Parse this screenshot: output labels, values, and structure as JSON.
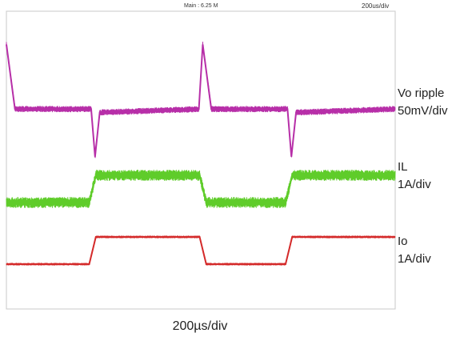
{
  "header": {
    "status": "Main : 6.25 M",
    "timebase": "200us/div"
  },
  "labels": {
    "vo_name": "Vo ripple",
    "vo_scale": "50mV/div",
    "il_name": "IL",
    "il_scale": "1A/div",
    "io_name": "Io",
    "io_scale": "1A/div",
    "x_caption": "200µs/div"
  },
  "chart_data": {
    "type": "line",
    "title": "",
    "x_unit": "us",
    "x_scale": "200us/div",
    "xlim": [
      0,
      1000
    ],
    "series": [
      {
        "name": "Vo ripple",
        "scale": "50mV/div",
        "color": "#b72fa8",
        "unit": "mV",
        "ylim": [
          -75,
          125
        ],
        "points": [
          [
            0,
            95
          ],
          [
            22,
            0
          ],
          [
            218,
            0
          ],
          [
            228,
            -70
          ],
          [
            240,
            -5
          ],
          [
            495,
            0
          ],
          [
            505,
            95
          ],
          [
            527,
            0
          ],
          [
            723,
            0
          ],
          [
            733,
            -70
          ],
          [
            745,
            -5
          ],
          [
            1000,
            0
          ]
        ]
      },
      {
        "name": "IL",
        "scale": "1A/div",
        "color": "#5fcc2a",
        "unit": "A",
        "ylim": [
          -0.5,
          2.0
        ],
        "points": [
          [
            0,
            0
          ],
          [
            213,
            0
          ],
          [
            230,
            1.0
          ],
          [
            497,
            1.0
          ],
          [
            514,
            0
          ],
          [
            718,
            0
          ],
          [
            735,
            1.0
          ],
          [
            1000,
            1.0
          ]
        ]
      },
      {
        "name": "Io",
        "scale": "1A/div",
        "color": "#d42a2a",
        "unit": "A",
        "ylim": [
          -0.5,
          2.0
        ],
        "points": [
          [
            0,
            0
          ],
          [
            213,
            0
          ],
          [
            230,
            1.0
          ],
          [
            497,
            1.0
          ],
          [
            514,
            0
          ],
          [
            718,
            0
          ],
          [
            735,
            1.0
          ],
          [
            1000,
            1.0
          ]
        ]
      }
    ],
    "grid": false,
    "legend": "right"
  }
}
